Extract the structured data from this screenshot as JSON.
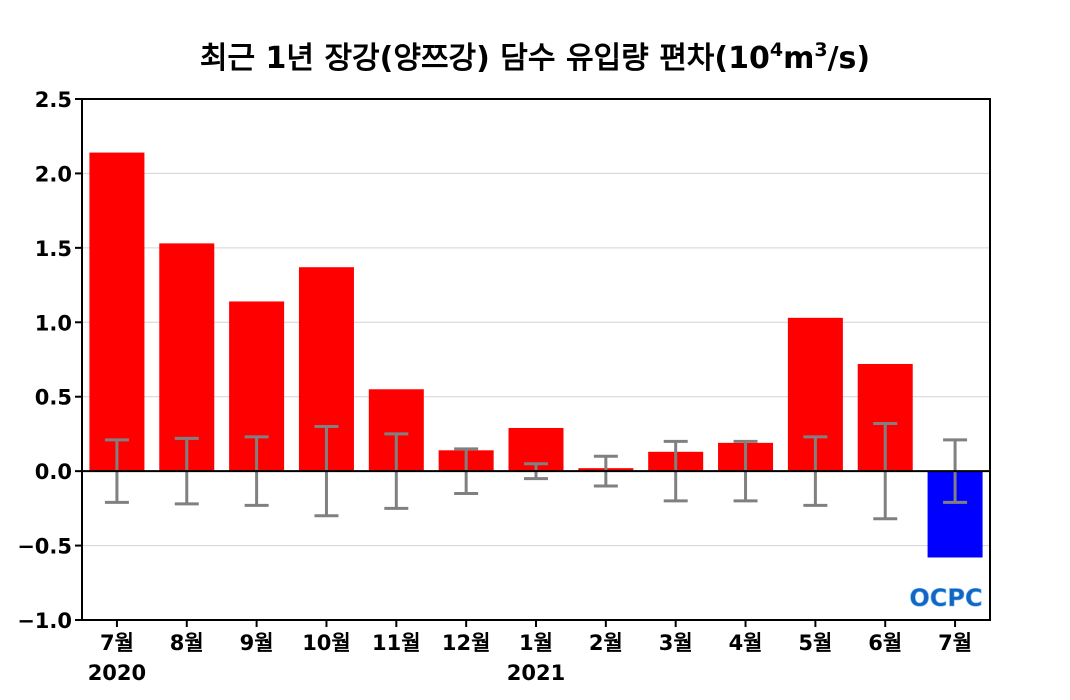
{
  "chart_data": {
    "type": "bar",
    "title_parts": {
      "main": "최근 1년 장강(양쯔강) 담수 유입량 편차(10",
      "sup1": "4",
      "mid": "m",
      "sup2": "3",
      "end": "/s)"
    },
    "categories": [
      "7월",
      "8월",
      "9월",
      "10월",
      "11월",
      "12월",
      "1월",
      "2월",
      "3월",
      "4월",
      "5월",
      "6월",
      "7월"
    ],
    "year_labels": [
      {
        "index": 0,
        "text": "2020"
      },
      {
        "index": 6,
        "text": "2021"
      }
    ],
    "values": [
      2.14,
      1.53,
      1.14,
      1.37,
      0.55,
      0.14,
      0.29,
      0.02,
      0.13,
      0.19,
      1.03,
      0.72,
      -0.58
    ],
    "error_bars": [
      0.21,
      0.22,
      0.23,
      0.3,
      0.25,
      0.15,
      0.05,
      0.1,
      0.2,
      0.2,
      0.23,
      0.32,
      0.21
    ],
    "ylim": [
      -1.0,
      2.5
    ],
    "yticks": [
      -1.0,
      -0.5,
      0.0,
      0.5,
      1.0,
      1.5,
      2.0,
      2.5
    ],
    "ytick_labels": [
      "−1.0",
      "−0.5",
      "0.0",
      "0.5",
      "1.0",
      "1.5",
      "2.0",
      "2.5"
    ],
    "grid": true,
    "colors": {
      "positive": "#ff0000",
      "negative": "#0000ff",
      "error_bar": "#808080",
      "grid": "#d3d3d3",
      "zero_line": "#000000"
    },
    "watermark": "OCPC"
  }
}
